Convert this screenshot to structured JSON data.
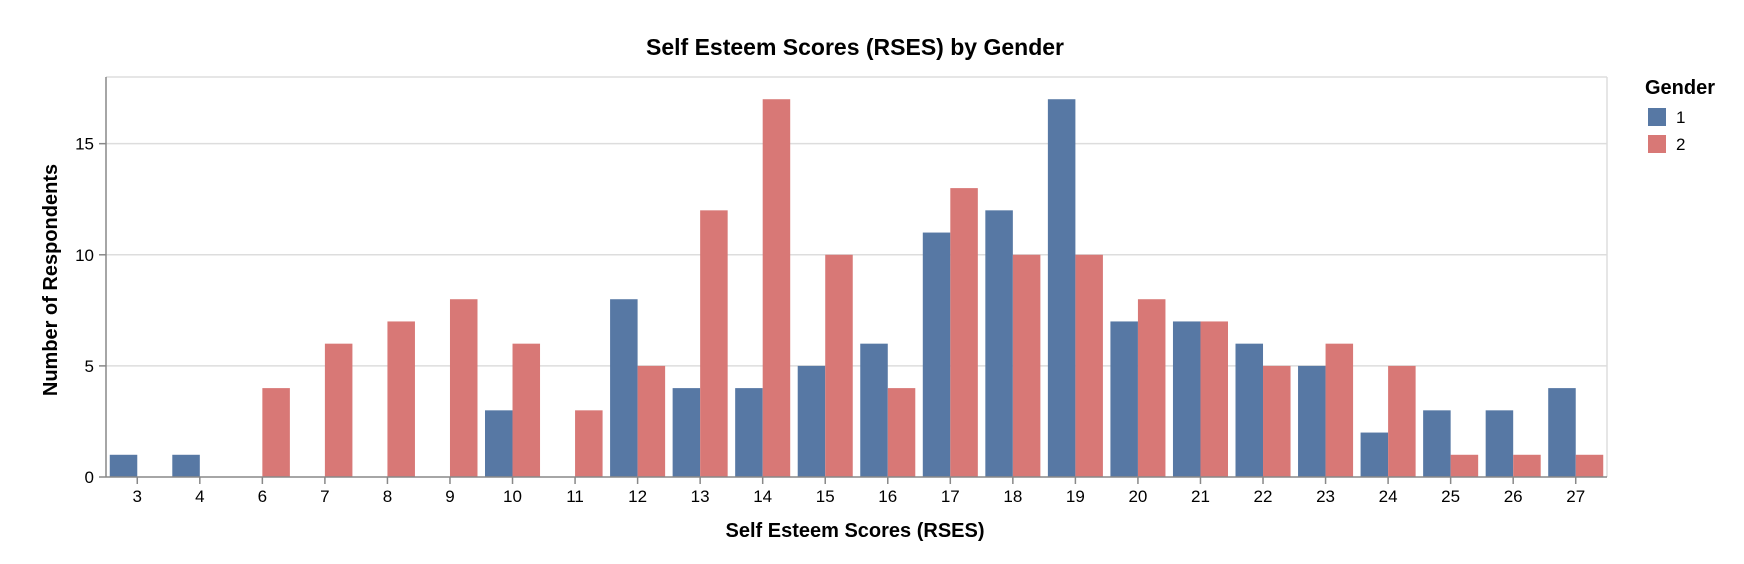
{
  "chart_data": {
    "type": "bar",
    "layout": "grouped",
    "title": "Self Esteem Scores (RSES) by Gender",
    "xlabel": "Self Esteem Scores (RSES)",
    "ylabel": "Number of Respondents",
    "ylim": [
      0,
      18
    ],
    "yticks": [
      0,
      5,
      10,
      15
    ],
    "grid": true,
    "categories": [
      "3",
      "4",
      "6",
      "7",
      "8",
      "9",
      "10",
      "11",
      "12",
      "13",
      "14",
      "15",
      "16",
      "17",
      "18",
      "19",
      "20",
      "21",
      "22",
      "23",
      "24",
      "25",
      "26",
      "27"
    ],
    "legend": {
      "title": "Gender",
      "position": "top-right"
    },
    "series": [
      {
        "name": "1",
        "color": "#5778a4",
        "values": [
          1,
          1,
          0,
          0,
          0,
          0,
          3,
          0,
          8,
          4,
          4,
          5,
          6,
          11,
          12,
          17,
          7,
          7,
          6,
          5,
          2,
          3,
          3,
          4
        ]
      },
      {
        "name": "2",
        "color": "#d87876",
        "values": [
          0,
          0,
          4,
          6,
          7,
          8,
          6,
          3,
          5,
          12,
          17,
          10,
          4,
          13,
          10,
          10,
          8,
          7,
          5,
          6,
          5,
          1,
          1,
          1
        ]
      }
    ]
  }
}
